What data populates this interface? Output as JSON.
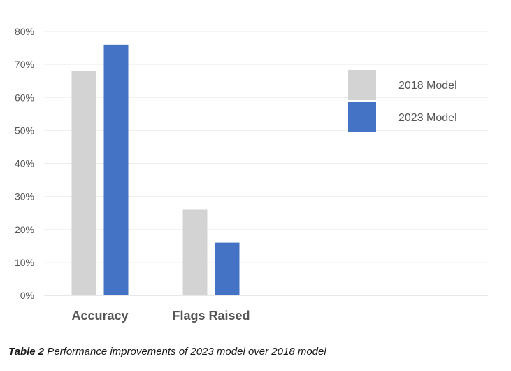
{
  "chart_data": {
    "type": "bar",
    "categories": [
      "Accuracy",
      "Flags Raised"
    ],
    "series": [
      {
        "name": "2018 Model",
        "values": [
          68,
          26
        ],
        "color": "#d3d3d3"
      },
      {
        "name": "2023 Model",
        "values": [
          76,
          16
        ],
        "color": "#4472c4"
      }
    ],
    "y_ticks": [
      "0%",
      "10%",
      "20%",
      "30%",
      "40%",
      "50%",
      "60%",
      "70%",
      "80%"
    ],
    "ylim": [
      0,
      80
    ],
    "y_unit": "%",
    "grid": true,
    "legend_position": "right"
  },
  "caption": {
    "label": "Table 2",
    "text": " Performance improvements of 2023 model over 2018 model"
  }
}
